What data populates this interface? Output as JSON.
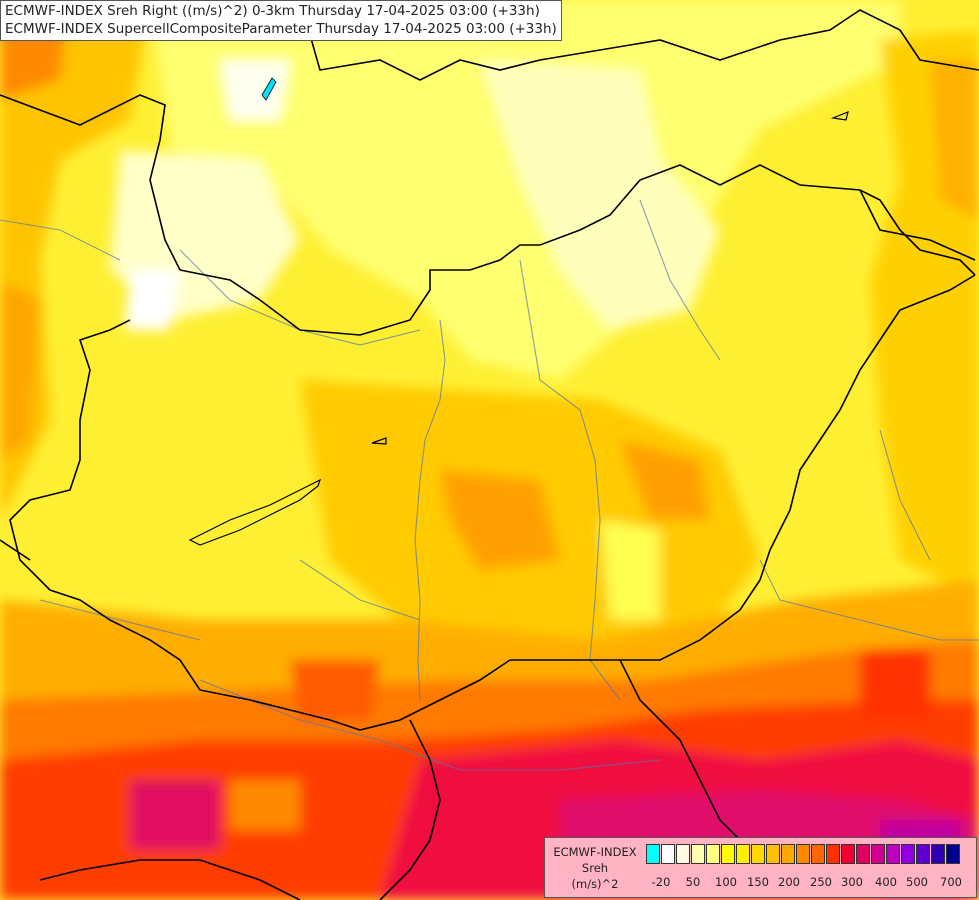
{
  "title": {
    "line1": "ECMWF-INDEX Sreh Right ((m/s)^2) 0-3km Thursday 17-04-2025 03:00 (+33h)",
    "line2": "ECMWF-INDEX SupercellCompositeParameter Thursday 17-04-2025 03:00 (+33h)"
  },
  "legend": {
    "title_lines": [
      "ECMWF-INDEX",
      "Sreh",
      "(m/s)^2"
    ],
    "colors": [
      "#00ffff",
      "#ffffff",
      "#fffbe0",
      "#ffffb0",
      "#ffff80",
      "#ffff00",
      "#fff000",
      "#ffd800",
      "#ffc000",
      "#ffa800",
      "#ff8800",
      "#ff6600",
      "#ff3000",
      "#f00030",
      "#e00060",
      "#d00090",
      "#c000c0",
      "#9000e0",
      "#6000d0",
      "#3000b0",
      "#000090"
    ],
    "tick_labels": [
      "-20",
      "50",
      "100",
      "150",
      "200",
      "250",
      "300",
      "400",
      "500",
      "700"
    ]
  }
}
